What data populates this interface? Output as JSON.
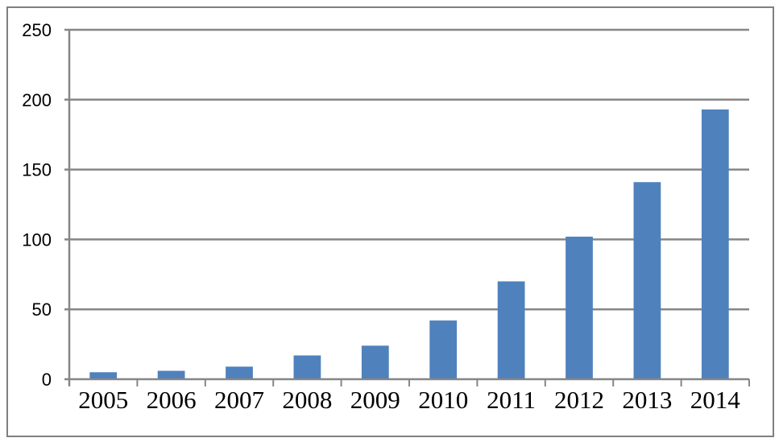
{
  "chart_data": {
    "type": "bar",
    "title": "",
    "xlabel": "",
    "ylabel": "",
    "categories": [
      "2005",
      "2006",
      "2007",
      "2008",
      "2009",
      "2010",
      "2011",
      "2012",
      "2013",
      "2014"
    ],
    "values": [
      5,
      6,
      9,
      17,
      24,
      42,
      70,
      102,
      141,
      193
    ],
    "ylim": [
      0,
      250
    ],
    "yticks": [
      0,
      50,
      100,
      150,
      200,
      250
    ],
    "grid": true,
    "legend": "none",
    "colors": {
      "bar": "#4f81bd",
      "gridline": "#868686",
      "frame": "#7f7f7f"
    }
  }
}
